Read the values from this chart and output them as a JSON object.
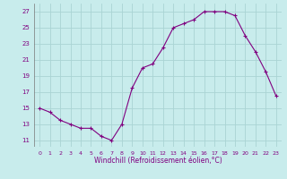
{
  "x": [
    0,
    1,
    2,
    3,
    4,
    5,
    6,
    7,
    8,
    9,
    10,
    11,
    12,
    13,
    14,
    15,
    16,
    17,
    18,
    19,
    20,
    21,
    22,
    23
  ],
  "y": [
    15,
    14.5,
    13.5,
    13,
    12.5,
    12.5,
    11.5,
    11,
    13,
    17.5,
    20,
    20.5,
    22.5,
    25,
    25.5,
    26,
    27,
    27,
    27,
    26.5,
    24,
    22,
    19.5,
    16.5
  ],
  "line_color": "#800080",
  "marker": "+",
  "background_color": "#c8ecec",
  "grid_color": "#aad4d4",
  "xlabel": "Windchill (Refroidissement éolien,°C)",
  "ylabel": "",
  "yticks": [
    11,
    13,
    15,
    17,
    19,
    21,
    23,
    25,
    27
  ],
  "xticks": [
    0,
    1,
    2,
    3,
    4,
    5,
    6,
    7,
    8,
    9,
    10,
    11,
    12,
    13,
    14,
    15,
    16,
    17,
    18,
    19,
    20,
    21,
    22,
    23
  ],
  "xlim": [
    -0.5,
    23.5
  ],
  "ylim": [
    10.2,
    28.0
  ]
}
